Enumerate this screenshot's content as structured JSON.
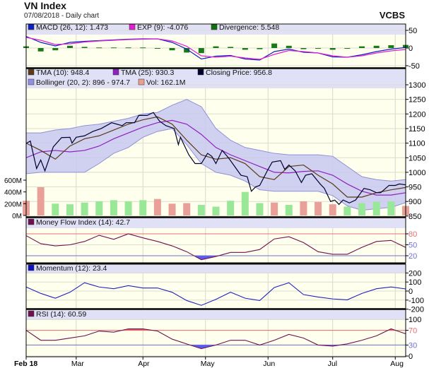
{
  "header": {
    "title": "VN Index",
    "subtitle": "07/08/2018 - Daily chart",
    "brand": "VCBS"
  },
  "colors": {
    "background": "#ffffee",
    "legend_band": "#e0e0f6",
    "up_volume": "#98e898",
    "down_volume": "#e8a098"
  },
  "x_axis": {
    "tick_labels": [
      "Feb 18",
      "Mar",
      "Apr",
      "May",
      "Jun",
      "Jul",
      "Aug"
    ],
    "tick_dates": [
      "2018-02-05",
      "2018-03-01",
      "2018-04-02",
      "2018-05-02",
      "2018-06-01",
      "2018-07-02",
      "2018-08-01"
    ]
  },
  "weeks": [
    "2018-02-05",
    "2018-02-12",
    "2018-02-19",
    "2018-02-26",
    "2018-03-05",
    "2018-03-12",
    "2018-03-19",
    "2018-03-26",
    "2018-04-02",
    "2018-04-09",
    "2018-04-16",
    "2018-04-23",
    "2018-04-30",
    "2018-05-07",
    "2018-05-14",
    "2018-05-21",
    "2018-05-28",
    "2018-06-04",
    "2018-06-11",
    "2018-06-18",
    "2018-06-25",
    "2018-07-02",
    "2018-07-09",
    "2018-07-16",
    "2018-07-23",
    "2018-07-30",
    "2018-08-06"
  ],
  "chart_data": [
    {
      "type": "line",
      "panel": "macd",
      "legend": [
        {
          "label": "MACD (26, 12): 1.473",
          "color": "#1020c0"
        },
        {
          "label": "EXP (9): -4.076",
          "color": "#e020d0"
        },
        {
          "label": "Divergence: 5.548",
          "color": "#107010"
        }
      ],
      "ylim": [
        -50,
        50
      ],
      "ticks": [
        "50",
        "0",
        "-50"
      ],
      "tick_values": [
        50,
        0,
        -50
      ],
      "series": [
        {
          "name": "MACD (26, 12)",
          "color": "#1020c0",
          "values": [
            33,
            16,
            6,
            16,
            19,
            21,
            23,
            25,
            26,
            26,
            16,
            -3,
            -31,
            -23,
            -21,
            -31,
            -34,
            -10,
            -3,
            -12,
            -14,
            -25,
            -26,
            -19,
            -10,
            -3,
            1.5
          ]
        },
        {
          "name": "EXP (9)",
          "color": "#e020d0",
          "values": [
            30,
            22,
            10,
            12,
            17,
            20,
            22,
            24,
            25,
            26,
            20,
            5,
            -22,
            -26,
            -23,
            -28,
            -32,
            -18,
            -7,
            -10,
            -14,
            -22,
            -26,
            -22,
            -14,
            -8,
            -4
          ]
        }
      ],
      "divergence": [
        3,
        -6,
        -4,
        4,
        2,
        1,
        1,
        1,
        1,
        0,
        -4,
        -8,
        -9,
        3,
        2,
        -3,
        -2,
        8,
        4,
        -2,
        0,
        -3,
        0,
        3,
        4,
        5,
        5.5
      ]
    },
    {
      "type": "line",
      "panel": "price",
      "legend": [
        {
          "label": "TMA (10): 948.4",
          "color": "#5a3a1a"
        },
        {
          "label": "TMA (25): 930.3",
          "color": "#9020c0"
        },
        {
          "label": "Closing Price: 956.8",
          "color": "#000030"
        },
        {
          "label": "Bollinger (20, 2): 896 - 974.7",
          "color": "#9090e0"
        },
        {
          "label": "Vol: 162.1M",
          "color": "#e8a090"
        }
      ],
      "ylim": [
        850,
        1300
      ],
      "ticks": [
        "1300",
        "1250",
        "1200",
        "1150",
        "1100",
        "1050",
        "1000",
        "950",
        "900",
        "850"
      ],
      "tick_values": [
        1300,
        1250,
        1200,
        1150,
        1100,
        1050,
        1000,
        950,
        900,
        850
      ],
      "close": {
        "dates": [
          "2018-02-05",
          "2018-02-07",
          "2018-02-10",
          "2018-02-12",
          "2018-02-14",
          "2018-02-18",
          "2018-02-22",
          "2018-02-26",
          "2018-02-27",
          "2018-03-01",
          "2018-03-05",
          "2018-03-09",
          "2018-03-13",
          "2018-03-18",
          "2018-03-23",
          "2018-03-25",
          "2018-03-29",
          "2018-03-31",
          "2018-04-04",
          "2018-04-07",
          "2018-04-10",
          "2018-04-13",
          "2018-04-17",
          "2018-04-19",
          "2018-04-20",
          "2018-04-24",
          "2018-04-27",
          "2018-04-30",
          "2018-05-03",
          "2018-05-05",
          "2018-05-07",
          "2018-05-10",
          "2018-05-13",
          "2018-05-15",
          "2018-05-19",
          "2018-05-22",
          "2018-05-24",
          "2018-05-26",
          "2018-05-28",
          "2018-06-01",
          "2018-06-03",
          "2018-06-07",
          "2018-06-09",
          "2018-06-11",
          "2018-06-14",
          "2018-06-17",
          "2018-06-19",
          "2018-06-22",
          "2018-06-26",
          "2018-06-28",
          "2018-07-01",
          "2018-07-03",
          "2018-07-05",
          "2018-07-07",
          "2018-07-10",
          "2018-07-13",
          "2018-07-17",
          "2018-07-20",
          "2018-07-23",
          "2018-07-25",
          "2018-07-29",
          "2018-08-01",
          "2018-08-03",
          "2018-08-06"
        ],
        "values": [
          1099,
          1107,
          1013,
          1042,
          1005,
          1087,
          1119,
          1120,
          1100,
          1120,
          1125,
          1140,
          1150,
          1170,
          1160,
          1170,
          1170,
          1195,
          1195,
          1205,
          1175,
          1160,
          1150,
          1095,
          1120,
          1060,
          1030,
          1030,
          1065,
          1055,
          1030,
          1075,
          1050,
          1030,
          990,
          985,
          935,
          950,
          955,
          1010,
          1035,
          1040,
          1010,
          1025,
          1005,
          965,
          990,
          995,
          960,
          945,
          900,
          905,
          890,
          905,
          895,
          905,
          945,
          940,
          930,
          930,
          955,
          955,
          960,
          957
        ]
      },
      "tma10": [
        1100,
        1075,
        1045,
        1090,
        1115,
        1125,
        1145,
        1165,
        1180,
        1190,
        1165,
        1110,
        1060,
        1045,
        1050,
        1030,
        985,
        975,
        1020,
        1025,
        990,
        960,
        915,
        915,
        930,
        940,
        948
      ],
      "tma25": [
        1050,
        1070,
        1075,
        1070,
        1075,
        1090,
        1115,
        1135,
        1155,
        1170,
        1178,
        1165,
        1130,
        1085,
        1060,
        1040,
        1020,
        1000,
        998,
        1003,
        1005,
        990,
        960,
        935,
        922,
        922,
        930
      ],
      "bollinger_upper": [
        1135,
        1135,
        1145,
        1150,
        1160,
        1165,
        1175,
        1185,
        1200,
        1205,
        1230,
        1250,
        1225,
        1150,
        1110,
        1085,
        1075,
        1065,
        1060,
        1060,
        1060,
        1055,
        1020,
        985,
        975,
        970,
        975
      ],
      "bollinger_lower": [
        995,
        1000,
        1000,
        1000,
        1000,
        1030,
        1065,
        1085,
        1120,
        1140,
        1150,
        1095,
        1030,
        1000,
        990,
        970,
        940,
        935,
        935,
        935,
        935,
        920,
        885,
        870,
        875,
        880,
        896
      ],
      "volume": {
        "ticks": [
          "600M",
          "400M",
          "200M",
          "0M"
        ],
        "tick_values": [
          600,
          400,
          200,
          0
        ],
        "unit": "M",
        "values": [
          250,
          480,
          200,
          190,
          220,
          240,
          260,
          240,
          260,
          280,
          200,
          210,
          180,
          150,
          250,
          400,
          210,
          220,
          180,
          240,
          230,
          190,
          150,
          210,
          230,
          240,
          162
        ],
        "up": [
          false,
          false,
          true,
          true,
          true,
          true,
          true,
          true,
          true,
          false,
          false,
          false,
          true,
          true,
          true,
          true,
          true,
          false,
          true,
          false,
          false,
          false,
          true,
          true,
          true,
          true,
          false
        ]
      }
    },
    {
      "type": "line",
      "panel": "mfi",
      "legend": [
        {
          "label": "Money Flow Index (14): 42.7",
          "color": "#701050"
        }
      ],
      "ylim": [
        0,
        100
      ],
      "ticks": [
        "80",
        "50",
        "20"
      ],
      "tick_values": [
        80,
        50,
        20
      ],
      "levels": [
        80,
        20
      ],
      "values": [
        75,
        53,
        47,
        50,
        59,
        76,
        65,
        80,
        69,
        59,
        47,
        31,
        9,
        18,
        29,
        29,
        37,
        66,
        72,
        56,
        31,
        24,
        24,
        43,
        59,
        62,
        42.7
      ]
    },
    {
      "type": "line",
      "panel": "momentum",
      "legend": [
        {
          "label": "Momentum (12): 23.4",
          "color": "#1010c0"
        }
      ],
      "ylim": [
        -200,
        200
      ],
      "ticks": [
        "200",
        "100",
        "0",
        "-100",
        "-200"
      ],
      "tick_values": [
        200,
        100,
        0,
        -100,
        -200
      ],
      "values": [
        45,
        -26,
        -79,
        -13,
        92,
        45,
        26,
        60,
        34,
        34,
        -13,
        -105,
        -158,
        -92,
        -13,
        -79,
        -105,
        39,
        92,
        -39,
        -66,
        -87,
        -97,
        -26,
        26,
        45,
        23.4
      ]
    },
    {
      "type": "line",
      "panel": "rsi",
      "legend": [
        {
          "label": "RSI (14): 60.59",
          "color": "#701050"
        }
      ],
      "ylim": [
        0,
        100
      ],
      "ticks": [
        "100",
        "70",
        "30",
        "0"
      ],
      "tick_values": [
        100,
        70,
        30,
        0
      ],
      "levels": [
        70,
        30
      ],
      "values": [
        70,
        43,
        43,
        49,
        55,
        68,
        65,
        74,
        74,
        68,
        46,
        33,
        20,
        30,
        43,
        43,
        30,
        43,
        59,
        49,
        30,
        27,
        33,
        43,
        55,
        74,
        60.59
      ]
    }
  ]
}
